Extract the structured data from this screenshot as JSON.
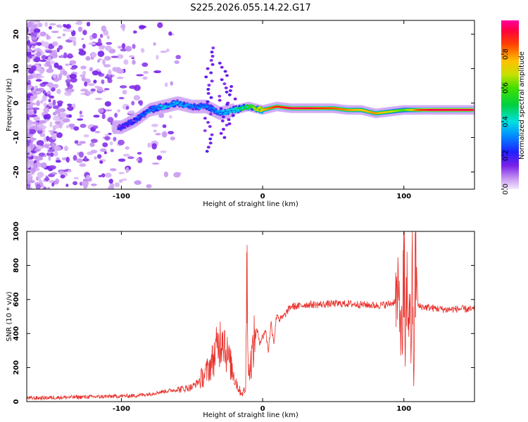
{
  "title": "S225.2026.055.14.22.G17",
  "colors": {
    "trace": "#e8302a",
    "axis": "#000000"
  },
  "chart_data": [
    {
      "type": "heatmap",
      "xlabel": "Height of straight line (km)",
      "ylabel": "Frequency (Hz)",
      "xlim": [
        -167,
        150
      ],
      "ylim": [
        -25,
        24
      ],
      "xticks": [
        -100,
        0,
        100
      ],
      "yticks": [
        20,
        10,
        0,
        -10,
        -20
      ],
      "xtick_labels": [
        "-100",
        "0",
        "100"
      ],
      "ytick_labels": [
        "20",
        "10",
        "0",
        "-10",
        "-20"
      ],
      "colorbar": {
        "label": "Normalized spectral amplitude",
        "range": [
          0,
          1
        ],
        "ticks": [
          0.0,
          0.2,
          0.4,
          0.6,
          0.8
        ],
        "tick_labels": [
          "0.0",
          "0.2",
          "0.4",
          "0.6",
          "0.8"
        ]
      },
      "ridge": {
        "x": [
          -100,
          -90,
          -80,
          -70,
          -60,
          -50,
          -40,
          -30,
          -20,
          -10,
          0,
          10,
          20,
          30,
          40,
          50,
          60,
          70,
          80,
          90,
          100,
          110,
          120,
          130,
          140,
          148
        ],
        "y": [
          -7,
          -5,
          -2,
          -1,
          0,
          -1,
          -1,
          -3,
          -2,
          -1,
          -2,
          -1,
          -1.5,
          -1.5,
          -1.5,
          -1.5,
          -2,
          -2,
          -3,
          -2.5,
          -2,
          -2,
          -2,
          -2,
          -2,
          -2
        ],
        "amplitude": [
          0.2,
          0.25,
          0.3,
          0.35,
          0.35,
          0.3,
          0.3,
          0.35,
          0.4,
          0.55,
          0.75,
          0.9,
          0.95,
          0.95,
          0.9,
          0.85,
          0.8,
          0.75,
          0.8,
          0.7,
          0.6,
          0.85,
          0.95,
          0.95,
          0.95,
          0.95
        ]
      }
    },
    {
      "type": "line",
      "xlabel": "Height of straight line (km)",
      "ylabel": "SNR (10 * v/v)",
      "xlim": [
        -167,
        150
      ],
      "ylim": [
        0,
        1000
      ],
      "xticks": [
        -100,
        0,
        100
      ],
      "yticks": [
        0,
        200,
        400,
        600,
        800,
        1000
      ],
      "xtick_labels": [
        "-100",
        "0",
        "100"
      ],
      "ytick_labels": [
        "0",
        "200",
        "400",
        "600",
        "800",
        "1000"
      ],
      "series": [
        {
          "name": "SNR",
          "x": [
            -167,
            -140,
            -110,
            -90,
            -80,
            -70,
            -60,
            -50,
            -45,
            -40,
            -36,
            -33,
            -30,
            -28,
            -26,
            -24,
            -22,
            -20,
            -18,
            -16,
            -14,
            -12,
            -11,
            -10,
            -8,
            -6,
            -4,
            -2,
            0,
            2,
            4,
            6,
            8,
            10,
            12,
            15,
            20,
            25,
            30,
            40,
            50,
            60,
            70,
            80,
            88,
            92,
            95,
            97,
            99,
            100,
            101,
            102,
            103,
            104,
            105,
            106,
            107,
            108,
            110,
            120,
            130,
            140,
            150
          ],
          "y": [
            20,
            25,
            30,
            35,
            45,
            60,
            70,
            85,
            120,
            170,
            230,
            300,
            360,
            420,
            300,
            250,
            200,
            150,
            100,
            60,
            50,
            80,
            920,
            150,
            250,
            350,
            420,
            350,
            380,
            420,
            300,
            460,
            350,
            520,
            480,
            500,
            560,
            560,
            570,
            570,
            575,
            575,
            570,
            565,
            570,
            580,
            600,
            560,
            350,
            990,
            250,
            700,
            500,
            620,
            300,
            800,
            70,
            990,
            560,
            550,
            540,
            545,
            540
          ]
        }
      ]
    }
  ]
}
